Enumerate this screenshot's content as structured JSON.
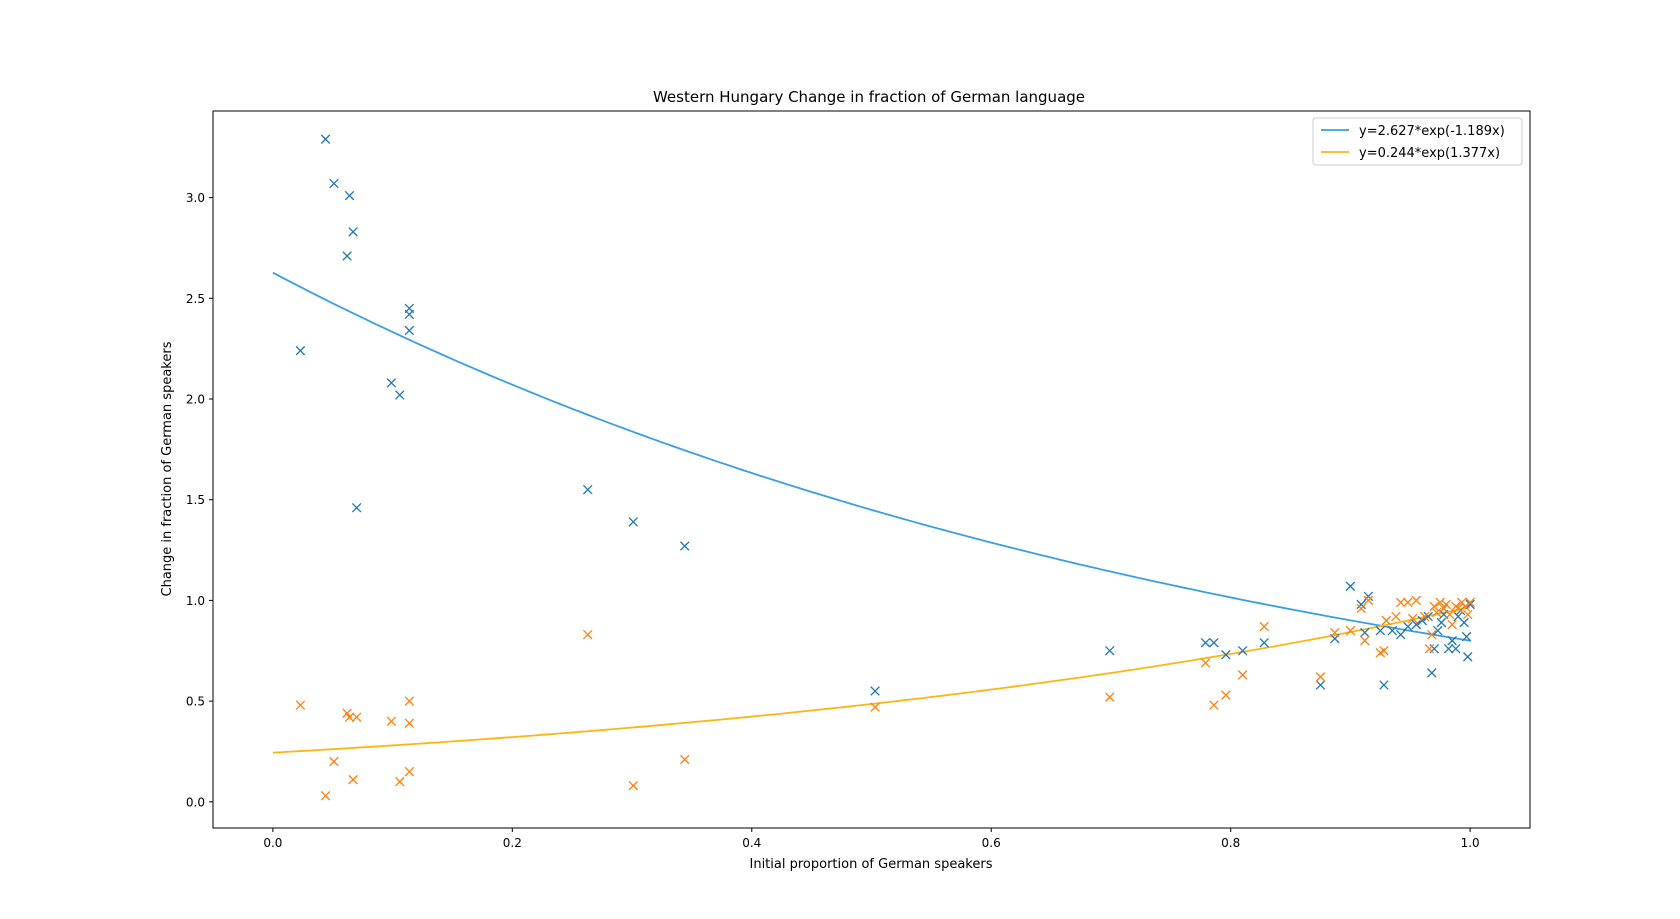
{
  "chart_data": {
    "type": "scatter",
    "title": "Western Hungary Change in fraction of German language",
    "xlabel": "Initial proportion of German speakers",
    "ylabel": "Change in fraction of German speakers",
    "xlim": [
      -0.05,
      1.05
    ],
    "ylim": [
      -0.13,
      3.43
    ],
    "xticks": [
      0.0,
      0.2,
      0.4,
      0.6,
      0.8,
      1.0
    ],
    "xtick_labels": [
      "0.0",
      "0.2",
      "0.4",
      "0.6",
      "0.8",
      "1.0"
    ],
    "yticks": [
      0.0,
      0.5,
      1.0,
      1.5,
      2.0,
      2.5,
      3.0
    ],
    "ytick_labels": [
      "0.0",
      "0.5",
      "1.0",
      "1.5",
      "2.0",
      "2.5",
      "3.0"
    ],
    "legend_position": "top-right",
    "series": [
      {
        "marker": "x",
        "color": "#1f77b4",
        "points": [
          [
            0.044,
            3.29
          ],
          [
            0.051,
            3.07
          ],
          [
            0.064,
            3.01
          ],
          [
            0.067,
            2.83
          ],
          [
            0.062,
            2.71
          ],
          [
            0.023,
            2.24
          ],
          [
            0.114,
            2.45
          ],
          [
            0.114,
            2.42
          ],
          [
            0.114,
            2.34
          ],
          [
            0.099,
            2.08
          ],
          [
            0.106,
            2.02
          ],
          [
            0.07,
            1.46
          ],
          [
            0.263,
            1.55
          ],
          [
            0.301,
            1.39
          ],
          [
            0.344,
            1.27
          ],
          [
            0.503,
            0.55
          ],
          [
            0.699,
            0.75
          ],
          [
            0.779,
            0.79
          ],
          [
            0.786,
            0.79
          ],
          [
            0.796,
            0.73
          ],
          [
            0.81,
            0.75
          ],
          [
            0.828,
            0.79
          ],
          [
            0.875,
            0.58
          ],
          [
            0.887,
            0.81
          ],
          [
            0.9,
            1.07
          ],
          [
            0.909,
            0.98
          ],
          [
            0.915,
            1.02
          ],
          [
            0.912,
            0.84
          ],
          [
            0.925,
            0.85
          ],
          [
            0.928,
            0.58
          ],
          [
            0.935,
            0.85
          ],
          [
            0.942,
            0.83
          ],
          [
            0.948,
            0.87
          ],
          [
            0.955,
            0.88
          ],
          [
            0.96,
            0.9
          ],
          [
            0.965,
            0.92
          ],
          [
            0.968,
            0.64
          ],
          [
            0.97,
            0.76
          ],
          [
            0.973,
            0.85
          ],
          [
            0.976,
            0.89
          ],
          [
            0.978,
            0.93
          ],
          [
            0.982,
            0.76
          ],
          [
            0.985,
            0.8
          ],
          [
            0.988,
            0.76
          ],
          [
            0.99,
            0.92
          ],
          [
            0.992,
            0.95
          ],
          [
            0.995,
            0.89
          ],
          [
            0.997,
            0.82
          ],
          [
            0.998,
            0.72
          ],
          [
            1.0,
            0.98
          ]
        ]
      },
      {
        "marker": "x",
        "color": "#ff7f0e",
        "points": [
          [
            0.023,
            0.48
          ],
          [
            0.044,
            0.03
          ],
          [
            0.051,
            0.2
          ],
          [
            0.062,
            0.44
          ],
          [
            0.064,
            0.42
          ],
          [
            0.067,
            0.11
          ],
          [
            0.07,
            0.42
          ],
          [
            0.099,
            0.4
          ],
          [
            0.106,
            0.1
          ],
          [
            0.114,
            0.5
          ],
          [
            0.114,
            0.39
          ],
          [
            0.114,
            0.15
          ],
          [
            0.263,
            0.83
          ],
          [
            0.301,
            0.08
          ],
          [
            0.344,
            0.21
          ],
          [
            0.503,
            0.47
          ],
          [
            0.699,
            0.52
          ],
          [
            0.779,
            0.69
          ],
          [
            0.786,
            0.48
          ],
          [
            0.796,
            0.53
          ],
          [
            0.81,
            0.63
          ],
          [
            0.828,
            0.87
          ],
          [
            0.875,
            0.62
          ],
          [
            0.887,
            0.84
          ],
          [
            0.9,
            0.85
          ],
          [
            0.909,
            0.96
          ],
          [
            0.912,
            0.8
          ],
          [
            0.915,
            1.0
          ],
          [
            0.925,
            0.74
          ],
          [
            0.928,
            0.75
          ],
          [
            0.93,
            0.9
          ],
          [
            0.938,
            0.92
          ],
          [
            0.942,
            0.99
          ],
          [
            0.948,
            0.99
          ],
          [
            0.952,
            0.91
          ],
          [
            0.955,
            1.0
          ],
          [
            0.962,
            0.92
          ],
          [
            0.966,
            0.76
          ],
          [
            0.968,
            0.83
          ],
          [
            0.97,
            0.97
          ],
          [
            0.972,
            0.94
          ],
          [
            0.975,
            0.99
          ],
          [
            0.978,
            0.96
          ],
          [
            0.98,
            0.98
          ],
          [
            0.983,
            0.93
          ],
          [
            0.985,
            0.88
          ],
          [
            0.988,
            0.97
          ],
          [
            0.99,
            0.96
          ],
          [
            0.993,
            0.99
          ],
          [
            0.996,
            0.97
          ],
          [
            0.998,
            0.93
          ],
          [
            1.0,
            0.99
          ]
        ]
      }
    ],
    "fits": [
      {
        "name": "y=2.627*exp(-1.189x)",
        "a": 2.627,
        "b": -1.189,
        "color": "#3a9ee4",
        "x_range": [
          0.0,
          1.0
        ]
      },
      {
        "name": "y=0.244*exp(1.377x)",
        "a": 0.244,
        "b": 1.377,
        "color": "#fdb515",
        "x_range": [
          0.0,
          1.0
        ]
      }
    ]
  }
}
